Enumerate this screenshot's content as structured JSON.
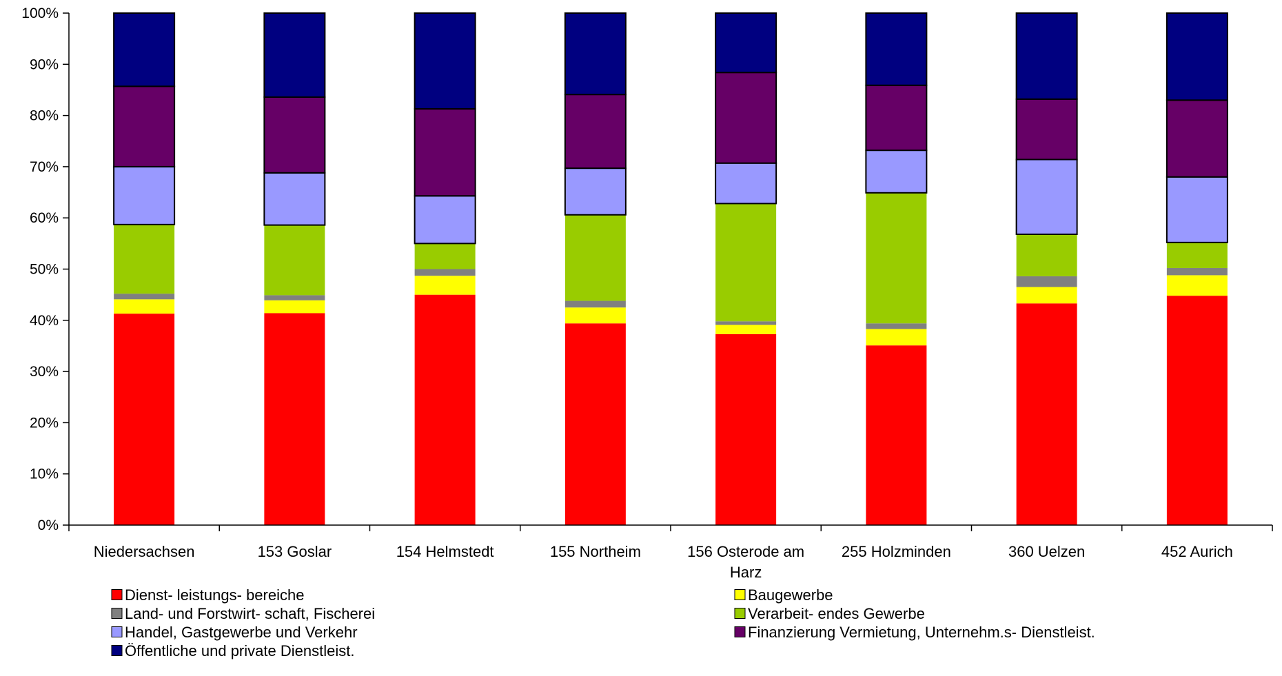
{
  "chart_data": {
    "type": "bar",
    "stacked": true,
    "percent": true,
    "title": "",
    "xlabel": "",
    "ylabel": "",
    "ylim": [
      0,
      100
    ],
    "y_ticks": [
      "0%",
      "10%",
      "20%",
      "30%",
      "40%",
      "50%",
      "60%",
      "70%",
      "80%",
      "90%",
      "100%"
    ],
    "grid": false,
    "legend_position": "bottom",
    "categories": [
      "Niedersachsen",
      "153 Goslar",
      "154 Helmstedt",
      "155 Northeim",
      "156 Osterode am Harz",
      "255 Holzminden",
      "360 Uelzen",
      "452 Aurich"
    ],
    "series": [
      {
        "name": "Dienst- leistungs- bereiche",
        "color": "#ff0000",
        "values": [
          41.3,
          41.4,
          45.0,
          39.4,
          37.3,
          35.1,
          43.3,
          44.8
        ]
      },
      {
        "name": "Baugewerbe",
        "color": "#ffff00",
        "values": [
          2.8,
          2.5,
          3.7,
          3.1,
          1.8,
          3.2,
          3.2,
          4.0
        ]
      },
      {
        "name": "Land- und Forstwirt- schaft, Fischerei",
        "color": "#808080",
        "values": [
          1.1,
          1.0,
          1.3,
          1.3,
          0.7,
          1.1,
          2.1,
          1.4
        ]
      },
      {
        "name": "Verarbeit- endes Gewerbe",
        "color": "#99cc00",
        "values": [
          13.5,
          13.7,
          5.0,
          16.8,
          23.0,
          25.5,
          8.2,
          5.0
        ]
      },
      {
        "name": "Handel, Gastgewerbe und Verkehr",
        "color": "#9999ff",
        "values": [
          11.3,
          10.2,
          9.3,
          9.1,
          7.9,
          8.3,
          14.6,
          12.8
        ]
      },
      {
        "name": "Finanzierung Vermietung, Unternehm.s- Dienstleist.",
        "color": "#660066",
        "values": [
          15.7,
          14.8,
          17.0,
          14.4,
          17.7,
          12.7,
          11.8,
          15.0
        ]
      },
      {
        "name": "Öffentliche und private Dienstleist.",
        "color": "#000080",
        "values": [
          14.3,
          16.4,
          18.7,
          15.9,
          11.6,
          14.1,
          16.8,
          17.0
        ]
      }
    ],
    "outlined_series": [
      "Handel, Gastgewerbe und Verkehr",
      "Finanzierung Vermietung, Unternehm.s- Dienstleist.",
      "Öffentliche und private Dienstleist."
    ]
  }
}
